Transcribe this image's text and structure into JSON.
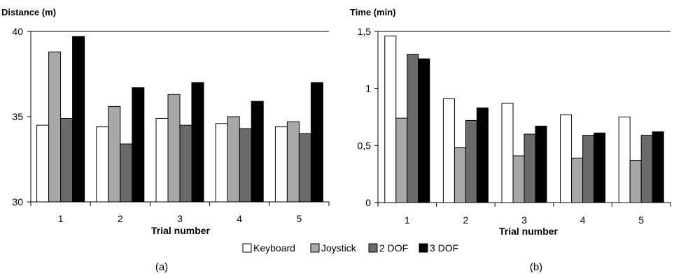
{
  "legend": {
    "entries": [
      "Keyboard",
      "Joystick",
      "2 DOF",
      "3 DOF"
    ],
    "placement": "bottom-center"
  },
  "colors": [
    "#ffffff",
    "#a8a8a8",
    "#6a6a6a",
    "#000000"
  ],
  "chart_data": [
    {
      "type": "bar",
      "panel_label": "(a)",
      "title": "Distance (m)",
      "xlabel": "Trial number",
      "ylabel": "",
      "categories": [
        "1",
        "2",
        "3",
        "4",
        "5"
      ],
      "ylim": [
        30,
        40
      ],
      "yticks": [
        30,
        35,
        40
      ],
      "ytick_labels": [
        "30",
        "35",
        "40"
      ],
      "grid": false,
      "top_line": true,
      "series": [
        {
          "name": "Keyboard",
          "values": [
            34.5,
            34.4,
            34.9,
            34.6,
            34.4
          ]
        },
        {
          "name": "Joystick",
          "values": [
            38.8,
            35.6,
            36.3,
            35.0,
            34.7
          ]
        },
        {
          "name": "2 DOF",
          "values": [
            34.9,
            33.4,
            34.5,
            34.3,
            34.0
          ]
        },
        {
          "name": "3 DOF",
          "values": [
            39.7,
            36.7,
            37.0,
            35.9,
            37.0
          ]
        }
      ]
    },
    {
      "type": "bar",
      "panel_label": "(b)",
      "title": "Time (min)",
      "xlabel": "Trial number",
      "ylabel": "",
      "categories": [
        "1",
        "2",
        "3",
        "4",
        "5"
      ],
      "ylim": [
        0,
        1.5
      ],
      "yticks": [
        0,
        0.5,
        1,
        1.5
      ],
      "ytick_labels": [
        "0",
        "0,5",
        "1",
        "1,5"
      ],
      "grid": false,
      "top_line": true,
      "series": [
        {
          "name": "Keyboard",
          "values": [
            1.46,
            0.91,
            0.87,
            0.77,
            0.75
          ]
        },
        {
          "name": "Joystick",
          "values": [
            0.74,
            0.48,
            0.41,
            0.39,
            0.37
          ]
        },
        {
          "name": "2 DOF",
          "values": [
            1.3,
            0.72,
            0.6,
            0.59,
            0.59
          ]
        },
        {
          "name": "3 DOF",
          "values": [
            1.26,
            0.83,
            0.67,
            0.61,
            0.62
          ]
        }
      ]
    }
  ]
}
